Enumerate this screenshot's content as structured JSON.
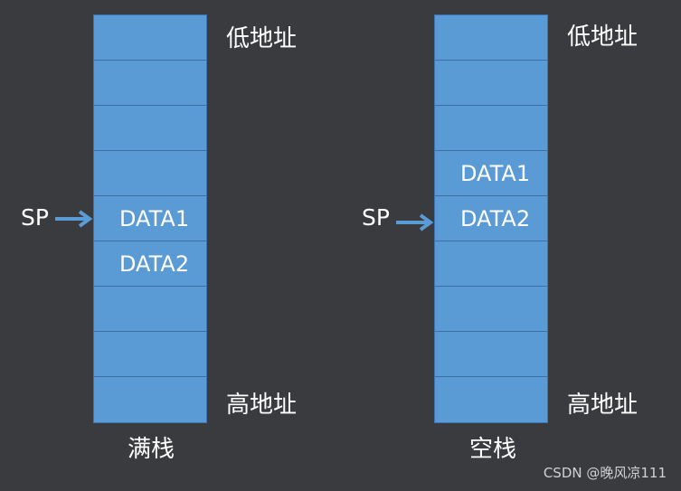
{
  "full_stack": {
    "caption": "满栈",
    "low_address_label": "低地址",
    "high_address_label": "高地址",
    "sp_label": "SP",
    "cells": [
      "",
      "",
      "",
      "",
      "DATA1",
      "DATA2",
      "",
      "",
      ""
    ]
  },
  "empty_stack": {
    "caption": "空栈",
    "low_address_label": "低地址",
    "high_address_label": "高地址",
    "sp_label": "SP",
    "cells": [
      "",
      "",
      "",
      "DATA1",
      "DATA2",
      "",
      "",
      "",
      ""
    ]
  },
  "watermark": "CSDN @晚风凉111",
  "colors": {
    "background": "#3a3b3f",
    "cell_fill": "#5b9bd5",
    "arrow": "#5b9bd5",
    "text": "#ffffff"
  }
}
